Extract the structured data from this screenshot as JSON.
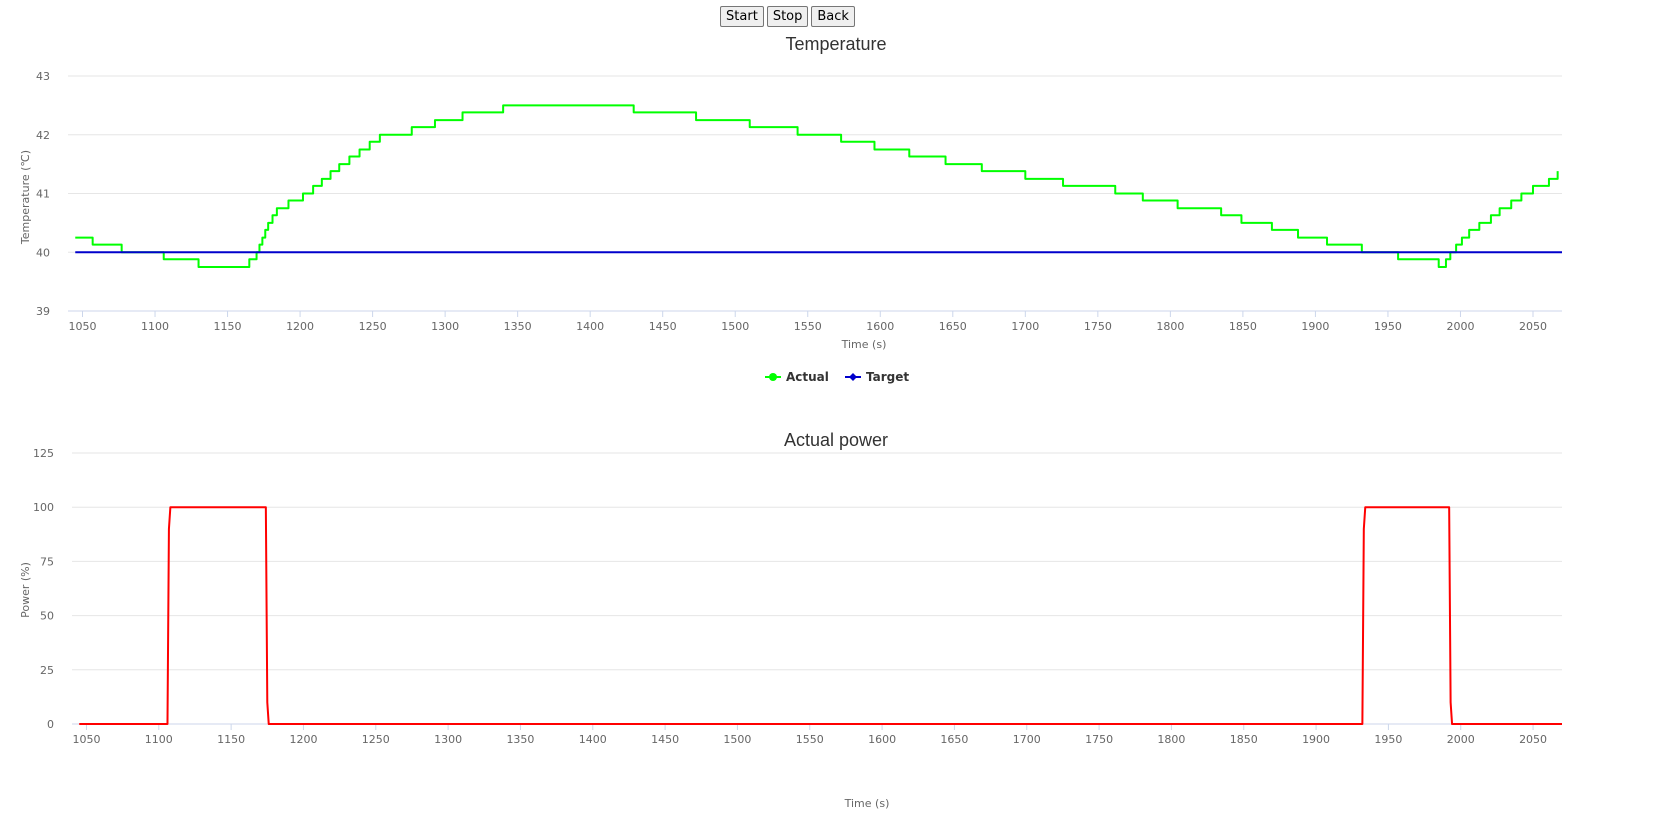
{
  "toolbar": {
    "start_label": "Start",
    "stop_label": "Stop",
    "back_label": "Back"
  },
  "chart_data": [
    {
      "type": "line",
      "title": "Temperature",
      "xlabel": "Time (s)",
      "ylabel": "Temperature (℃)",
      "xlim": [
        1040,
        2070
      ],
      "ylim": [
        39,
        43
      ],
      "xticks": [
        1050,
        1100,
        1150,
        1200,
        1250,
        1300,
        1350,
        1400,
        1450,
        1500,
        1550,
        1600,
        1650,
        1700,
        1750,
        1800,
        1850,
        1900,
        1950,
        2000,
        2050
      ],
      "yticks": [
        39,
        40,
        41,
        42,
        43
      ],
      "grid": true,
      "legend": "bottom-center",
      "series": [
        {
          "name": "Actual",
          "color": "#00ff00",
          "step": true,
          "x": [
            1045,
            1057,
            1077,
            1106,
            1130,
            1165,
            1170,
            1172,
            1174,
            1176,
            1178,
            1181,
            1184,
            1188,
            1192,
            1202,
            1209,
            1215,
            1221,
            1227,
            1234,
            1241,
            1248,
            1255,
            1265,
            1277,
            1293,
            1312,
            1340,
            1430,
            1473,
            1510,
            1543,
            1573,
            1596,
            1620,
            1645,
            1670,
            1700,
            1726,
            1762,
            1781,
            1805,
            1835,
            1849,
            1870,
            1888,
            1908,
            1932,
            1957,
            1985,
            1990,
            1993,
            1997,
            2001,
            2006,
            2013,
            2021,
            2027,
            2035,
            2042,
            2050,
            2061,
            2067
          ],
          "y": [
            40.25,
            40.13,
            40.0,
            39.88,
            39.75,
            39.88,
            40.0,
            40.13,
            40.25,
            40.38,
            40.5,
            40.63,
            40.75,
            40.75,
            40.88,
            41.0,
            41.13,
            41.25,
            41.38,
            41.5,
            41.63,
            41.75,
            41.88,
            42.0,
            42.0,
            42.13,
            42.25,
            42.38,
            42.5,
            42.38,
            42.25,
            42.13,
            42.0,
            41.88,
            41.75,
            41.63,
            41.5,
            41.38,
            41.25,
            41.13,
            41.0,
            40.88,
            40.75,
            40.63,
            40.5,
            40.38,
            40.25,
            40.13,
            40.0,
            39.88,
            39.75,
            39.88,
            40.0,
            40.13,
            40.25,
            40.38,
            40.5,
            40.63,
            40.75,
            40.88,
            41.0,
            41.13,
            41.25,
            41.38
          ]
        },
        {
          "name": "Target",
          "color": "#0000cc",
          "x": [
            1045,
            2070
          ],
          "y": [
            40,
            40
          ]
        }
      ]
    },
    {
      "type": "line",
      "title": "Actual power",
      "xlabel": "Time (s)",
      "ylabel": "Power (%)",
      "xlim": [
        1040,
        2070
      ],
      "ylim": [
        0,
        125
      ],
      "xticks": [
        1050,
        1100,
        1150,
        1200,
        1250,
        1300,
        1350,
        1400,
        1450,
        1500,
        1550,
        1600,
        1650,
        1700,
        1750,
        1800,
        1850,
        1900,
        1950,
        2000,
        2050
      ],
      "yticks": [
        0,
        25,
        50,
        75,
        100,
        125
      ],
      "grid": true,
      "series": [
        {
          "color": "#ff0000",
          "x": [
            1045,
            1106,
            1107,
            1108,
            1174,
            1175,
            1176,
            1932,
            1933,
            1934,
            1992,
            1993,
            1994,
            2070
          ],
          "y": [
            0,
            0,
            90,
            100,
            100,
            10,
            0,
            0,
            90,
            100,
            100,
            10,
            0,
            0
          ]
        }
      ]
    }
  ]
}
